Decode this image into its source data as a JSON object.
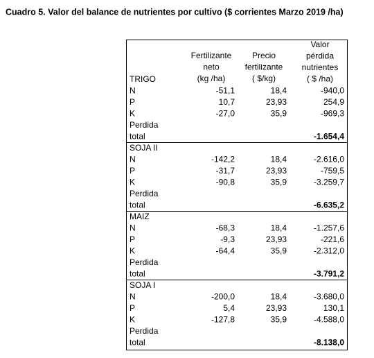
{
  "title": "Cuadro 5. Valor del balance de nutrientes por cultivo ($ corrientes Marzo 2019 /ha)",
  "header": {
    "fertilizante": [
      "Fertilizante",
      "neto",
      "(kg /ha)"
    ],
    "precio": [
      "Precio",
      "fertilizante",
      "( $/kg)"
    ],
    "valor": [
      "Valor",
      "pérdida",
      "nutrientes",
      "( $ /ha)"
    ]
  },
  "groups": [
    {
      "name": "TRIGO",
      "rows": [
        [
          "N",
          "-51,1",
          "18,4",
          "-940,0"
        ],
        [
          "P",
          "10,7",
          "23,93",
          "254,9"
        ],
        [
          "K",
          "-27,0",
          "35,9",
          "-969,3"
        ]
      ],
      "total_label": [
        "Perdida",
        "total"
      ],
      "total": "-1.654,4"
    },
    {
      "name": "SOJA II",
      "rows": [
        [
          "N",
          "-142,2",
          "18,4",
          "-2.616,0"
        ],
        [
          "P",
          "-31,7",
          "23,93",
          "-759,5"
        ],
        [
          "K",
          "-90,8",
          "35,9",
          "-3.259,7"
        ]
      ],
      "total_label": [
        "Perdida",
        "total"
      ],
      "total": "-6.635,2"
    },
    {
      "name": "MAIZ",
      "rows": [
        [
          "N",
          "-68,3",
          "18,4",
          "-1.257,6"
        ],
        [
          "P",
          "-9,3",
          "23,93",
          "-221,6"
        ],
        [
          "K",
          "-64,4",
          "35,9",
          "-2.312,0"
        ]
      ],
      "total_label": [
        "Perdida",
        "total"
      ],
      "total": "-3.791,2"
    },
    {
      "name": "SOJA I",
      "rows": [
        [
          "N",
          "-200,0",
          "18,4",
          "-3.680,0"
        ],
        [
          "P",
          "5,4",
          "23,93",
          "130,1"
        ],
        [
          "K",
          "-127,8",
          "35,9",
          "-4.588,0"
        ]
      ],
      "total_label": [
        "Perdida",
        "total"
      ],
      "total": "-8.138,0"
    }
  ]
}
